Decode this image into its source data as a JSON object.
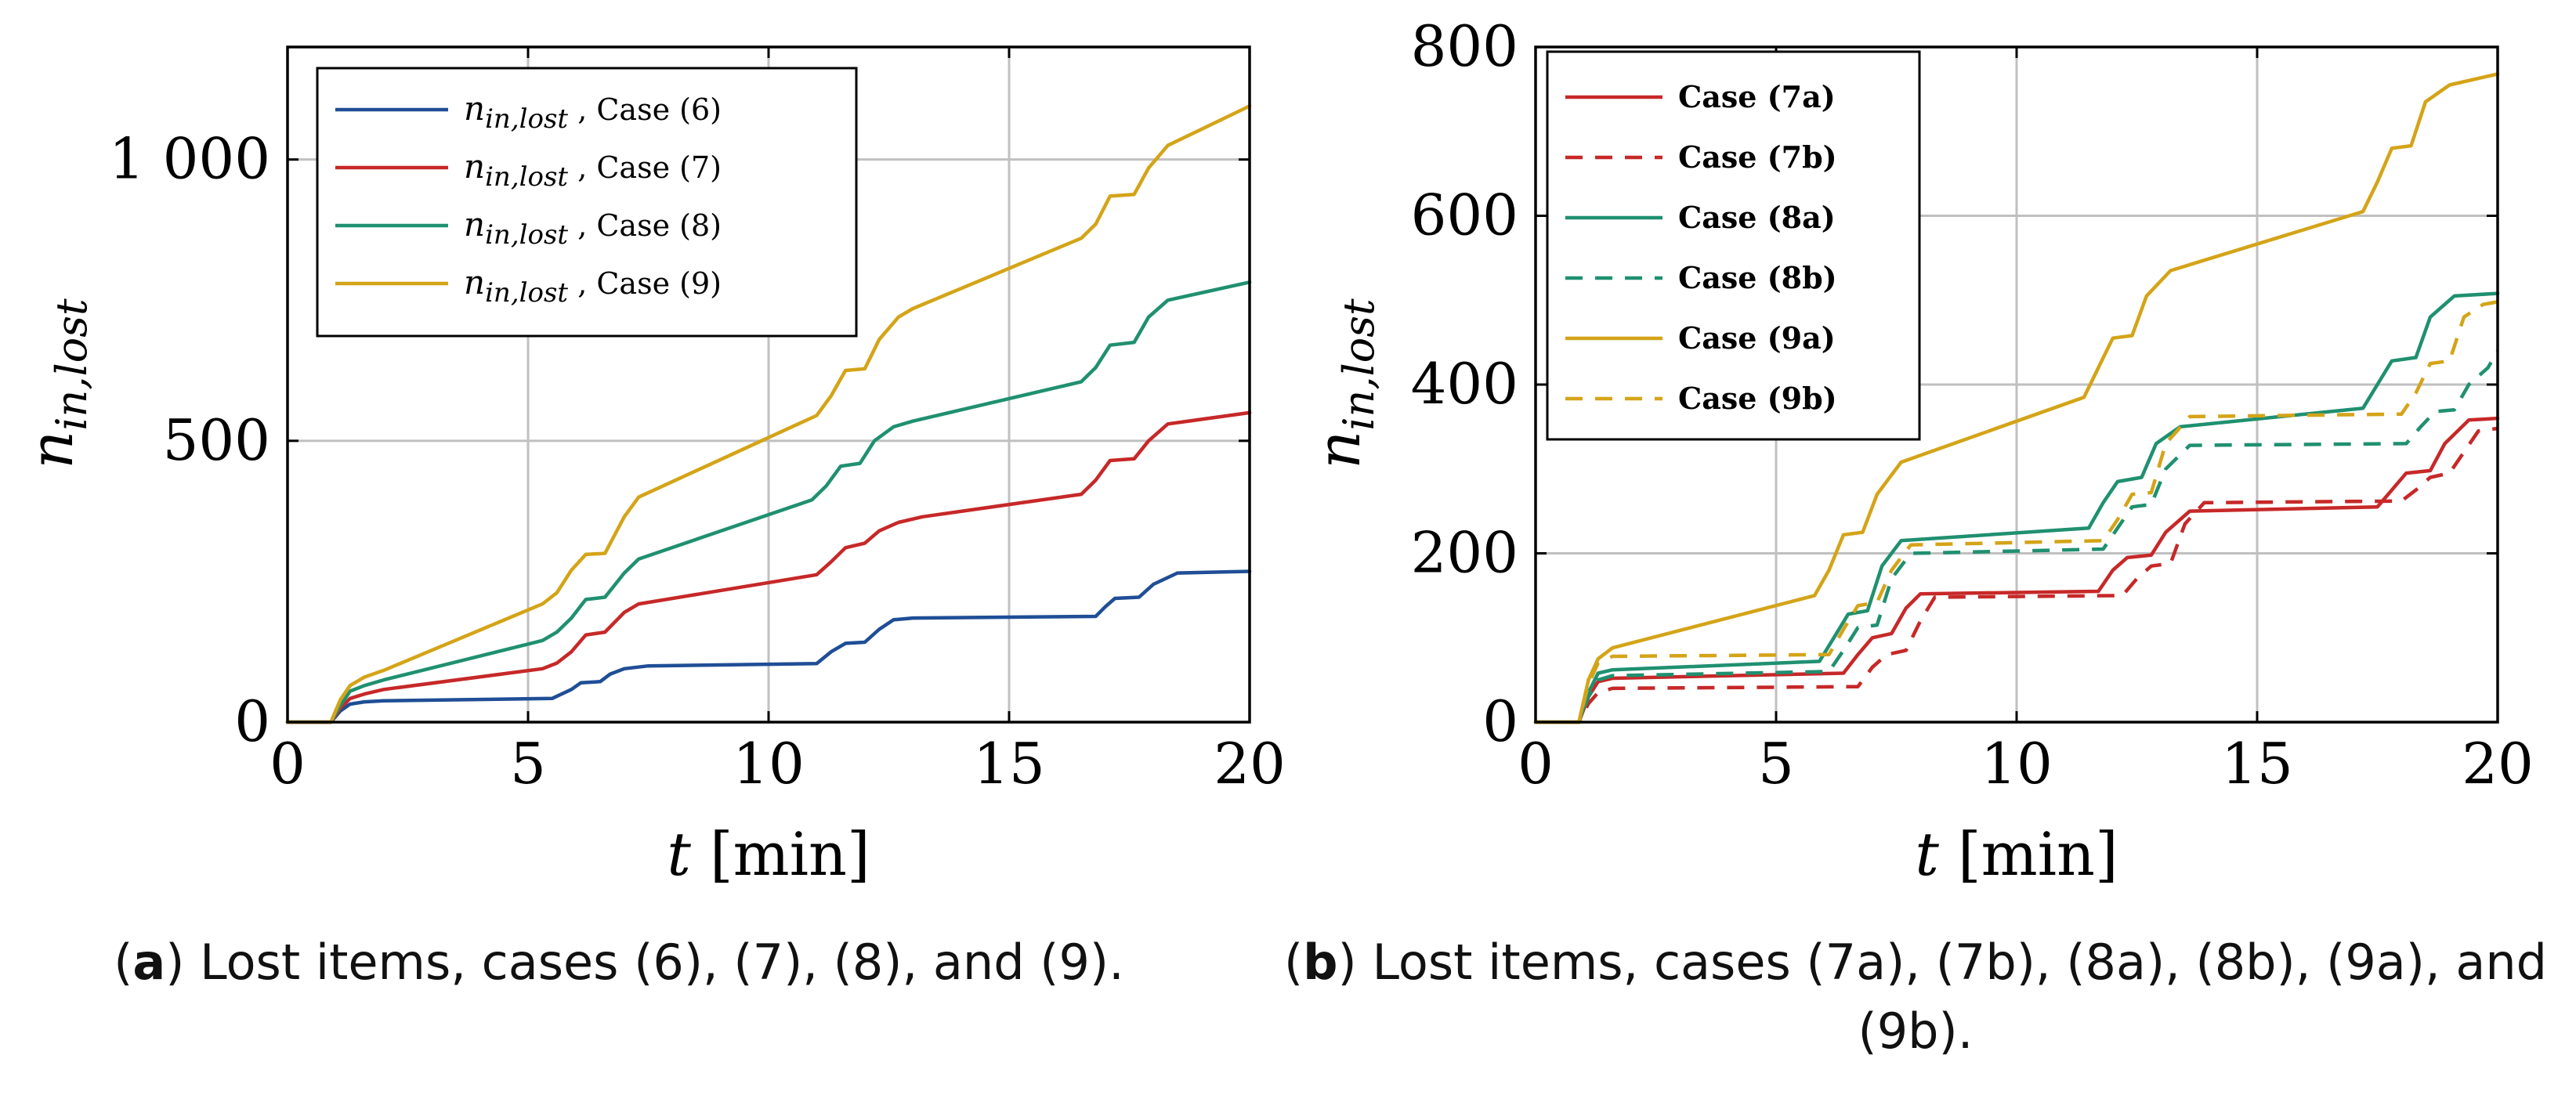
{
  "chart_data": [
    {
      "id": "a",
      "type": "line",
      "xlabel_var": "t",
      "xlabel_unit": "[min]",
      "ylabel_main": "n",
      "ylabel_sub": "in,lost",
      "xlim": [
        0,
        20
      ],
      "ylim": [
        0,
        1200
      ],
      "xticks": [
        0,
        5,
        10,
        15,
        20
      ],
      "xtick_labels": [
        "0",
        "5",
        "10",
        "15",
        "20"
      ],
      "yticks": [
        0,
        500,
        1000
      ],
      "ytick_labels": [
        "0",
        "500",
        "1 000"
      ],
      "grid": true,
      "legend_position": "top-left",
      "series": [
        {
          "name": "Case (6)",
          "legend_var": "n",
          "legend_sub": "in,lost",
          "legend_case": ", Case (6)",
          "color": "#1f4e96",
          "dash": "solid",
          "x": [
            0,
            0.9,
            1.1,
            1.3,
            1.6,
            2.0,
            5.5,
            5.9,
            6.1,
            6.5,
            6.7,
            7.0,
            7.5,
            11.0,
            11.3,
            11.6,
            12.0,
            12.3,
            12.6,
            13.0,
            16.8,
            17.0,
            17.2,
            17.7,
            18.0,
            18.5,
            20
          ],
          "y": [
            0,
            0,
            20,
            32,
            36,
            38,
            42,
            58,
            70,
            72,
            85,
            95,
            100,
            104,
            125,
            140,
            142,
            165,
            182,
            185,
            188,
            205,
            220,
            222,
            245,
            265,
            268
          ]
        },
        {
          "name": "Case (7)",
          "legend_var": "n",
          "legend_sub": "in,lost",
          "legend_case": ", Case (7)",
          "color": "#c72828",
          "dash": "solid",
          "x": [
            0,
            0.9,
            1.1,
            1.3,
            1.6,
            2.0,
            5.3,
            5.6,
            5.9,
            6.2,
            6.6,
            7.0,
            7.3,
            11.0,
            11.3,
            11.6,
            12.0,
            12.3,
            12.7,
            13.2,
            16.5,
            16.8,
            17.1,
            17.6,
            17.9,
            18.3,
            20
          ],
          "y": [
            0,
            0,
            25,
            42,
            50,
            58,
            95,
            105,
            125,
            155,
            160,
            195,
            210,
            262,
            285,
            310,
            318,
            340,
            355,
            365,
            405,
            430,
            465,
            468,
            500,
            530,
            550
          ]
        },
        {
          "name": "Case (8)",
          "legend_var": "n",
          "legend_sub": "in,lost",
          "legend_case": ", Case (8)",
          "color": "#1f9070",
          "dash": "solid",
          "x": [
            0,
            0.9,
            1.1,
            1.3,
            1.6,
            2.0,
            5.3,
            5.6,
            5.9,
            6.2,
            6.6,
            7.0,
            7.3,
            10.9,
            11.2,
            11.5,
            11.9,
            12.2,
            12.6,
            13.0,
            16.5,
            16.8,
            17.1,
            17.6,
            17.9,
            18.3,
            20
          ],
          "y": [
            0,
            0,
            30,
            55,
            65,
            75,
            145,
            160,
            185,
            218,
            222,
            265,
            290,
            395,
            420,
            455,
            460,
            500,
            525,
            535,
            605,
            630,
            670,
            675,
            720,
            750,
            782
          ]
        },
        {
          "name": "Case (9)",
          "legend_var": "n",
          "legend_sub": "in,lost",
          "legend_case": ", Case (9)",
          "color": "#d4a418",
          "dash": "solid",
          "x": [
            0,
            0.9,
            1.1,
            1.3,
            1.6,
            2.0,
            5.3,
            5.6,
            5.9,
            6.2,
            6.6,
            7.0,
            7.3,
            11.0,
            11.3,
            11.6,
            12.0,
            12.3,
            12.7,
            13.0,
            16.5,
            16.8,
            17.1,
            17.6,
            17.9,
            18.3,
            20
          ],
          "y": [
            0,
            0,
            40,
            65,
            80,
            92,
            210,
            230,
            270,
            298,
            300,
            365,
            400,
            545,
            580,
            625,
            628,
            680,
            720,
            735,
            860,
            885,
            935,
            938,
            985,
            1025,
            1095
          ]
        }
      ]
    },
    {
      "id": "b",
      "type": "line",
      "xlabel_var": "t",
      "xlabel_unit": "[min]",
      "ylabel_main": "n",
      "ylabel_sub": "in,lost",
      "xlim": [
        0,
        20
      ],
      "ylim": [
        0,
        800
      ],
      "xticks": [
        0,
        5,
        10,
        15,
        20
      ],
      "xtick_labels": [
        "0",
        "5",
        "10",
        "15",
        "20"
      ],
      "yticks": [
        0,
        200,
        400,
        600,
        800
      ],
      "ytick_labels": [
        "0",
        "200",
        "400",
        "600",
        "800"
      ],
      "grid": true,
      "legend_position": "top-left",
      "series": [
        {
          "name": "Case (7a)",
          "legend_case": "Case (7a)",
          "color": "#c72828",
          "dash": "solid",
          "x": [
            0,
            0.9,
            1.1,
            1.3,
            1.6,
            6.4,
            6.7,
            7.0,
            7.4,
            7.7,
            8.0,
            11.7,
            12.0,
            12.3,
            12.8,
            13.1,
            13.6,
            17.5,
            17.8,
            18.1,
            18.6,
            18.9,
            19.4,
            20
          ],
          "y": [
            0,
            0,
            30,
            48,
            52,
            58,
            80,
            100,
            105,
            135,
            152,
            155,
            180,
            195,
            198,
            225,
            250,
            255,
            275,
            295,
            298,
            330,
            358,
            360
          ]
        },
        {
          "name": "Case (7b)",
          "legend_case": "Case (7b)",
          "color": "#c72828",
          "dash": "dashed",
          "x": [
            0,
            0.9,
            1.1,
            1.3,
            1.6,
            6.7,
            7.0,
            7.3,
            7.7,
            8.0,
            8.3,
            12.2,
            12.5,
            12.8,
            13.2,
            13.5,
            13.9,
            18.0,
            18.3,
            18.6,
            19.0,
            19.3,
            19.6,
            20
          ],
          "y": [
            0,
            0,
            22,
            35,
            40,
            42,
            65,
            80,
            85,
            120,
            148,
            150,
            170,
            185,
            188,
            235,
            260,
            262,
            275,
            290,
            295,
            320,
            345,
            348
          ]
        },
        {
          "name": "Case (8a)",
          "legend_case": "Case (8a)",
          "color": "#1f9070",
          "dash": "solid",
          "x": [
            0,
            0.9,
            1.1,
            1.3,
            1.6,
            5.9,
            6.2,
            6.5,
            6.9,
            7.2,
            7.6,
            11.5,
            11.8,
            12.1,
            12.6,
            12.9,
            13.4,
            17.2,
            17.5,
            17.8,
            18.3,
            18.6,
            19.1,
            20
          ],
          "y": [
            0,
            0,
            35,
            58,
            62,
            72,
            100,
            128,
            132,
            185,
            215,
            230,
            260,
            285,
            290,
            330,
            350,
            372,
            400,
            428,
            432,
            480,
            505,
            508
          ]
        },
        {
          "name": "Case (8b)",
          "legend_case": "Case (8b)",
          "color": "#1f9070",
          "dash": "dashed",
          "x": [
            0,
            0.9,
            1.1,
            1.3,
            1.6,
            6.1,
            6.4,
            6.7,
            7.1,
            7.4,
            7.8,
            11.8,
            12.1,
            12.4,
            12.8,
            13.1,
            13.6,
            18.1,
            18.4,
            18.7,
            19.1,
            19.4,
            19.8,
            20
          ],
          "y": [
            0,
            0,
            30,
            50,
            55,
            60,
            85,
            112,
            115,
            170,
            200,
            205,
            230,
            255,
            258,
            300,
            328,
            330,
            350,
            368,
            370,
            400,
            420,
            440
          ]
        },
        {
          "name": "Case (9a)",
          "legend_case": "Case (9a)",
          "color": "#d4a418",
          "dash": "solid",
          "x": [
            0,
            0.9,
            1.1,
            1.3,
            1.6,
            5.8,
            6.1,
            6.4,
            6.8,
            7.1,
            7.6,
            11.4,
            11.7,
            12.0,
            12.4,
            12.7,
            13.2,
            17.2,
            17.5,
            17.8,
            18.2,
            18.5,
            19.0,
            20
          ],
          "y": [
            0,
            0,
            50,
            75,
            88,
            150,
            180,
            222,
            225,
            270,
            308,
            385,
            420,
            455,
            458,
            505,
            535,
            605,
            640,
            680,
            683,
            735,
            755,
            768
          ]
        },
        {
          "name": "Case (9b)",
          "legend_case": "Case (9b)",
          "color": "#d4a418",
          "dash": "dashed",
          "x": [
            0,
            0.9,
            1.1,
            1.3,
            1.6,
            6.1,
            6.4,
            6.7,
            7.1,
            7.4,
            7.8,
            11.8,
            12.1,
            12.4,
            12.8,
            13.1,
            13.6,
            18.0,
            18.3,
            18.6,
            19.0,
            19.3,
            19.7,
            20
          ],
          "y": [
            0,
            0,
            45,
            70,
            78,
            80,
            110,
            138,
            142,
            180,
            210,
            215,
            240,
            270,
            272,
            330,
            362,
            365,
            390,
            425,
            428,
            480,
            495,
            498
          ]
        }
      ]
    }
  ],
  "captions": {
    "a_label": "a",
    "a_text": " Lost items, cases (6), (7), (8), and (9).",
    "b_label": "b",
    "b_text": " Lost items, cases (7a), (7b), (8a), (8b), (9a), and (9b)."
  }
}
